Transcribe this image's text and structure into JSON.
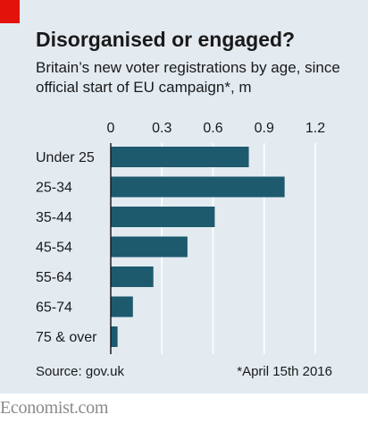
{
  "title": "Disorganised or engaged?",
  "subtitle": "Britain’s new voter registrations by age, since official start of EU campaign*, m",
  "source": "Source: gov.uk",
  "footnote": "*April 15th 2016",
  "brand": "Economist.com",
  "colors": {
    "bar": "#1e5a6e",
    "background": "#e3ebf1",
    "accent": "#e3120b",
    "grid": "#ffffff"
  },
  "chart_data": {
    "type": "bar",
    "orientation": "horizontal",
    "categories": [
      "Under 25",
      "25-34",
      "35-44",
      "45-54",
      "55-64",
      "65-74",
      "75 & over"
    ],
    "values": [
      0.81,
      1.02,
      0.61,
      0.45,
      0.25,
      0.13,
      0.04
    ],
    "xlim": [
      0,
      1.2
    ],
    "xticks": [
      0,
      0.3,
      0.6,
      0.9,
      1.2
    ],
    "xtick_labels": [
      "0",
      "0.3",
      "0.6",
      "0.9",
      "1.2"
    ],
    "axis_position": "top",
    "grid": true,
    "unit": "m"
  }
}
